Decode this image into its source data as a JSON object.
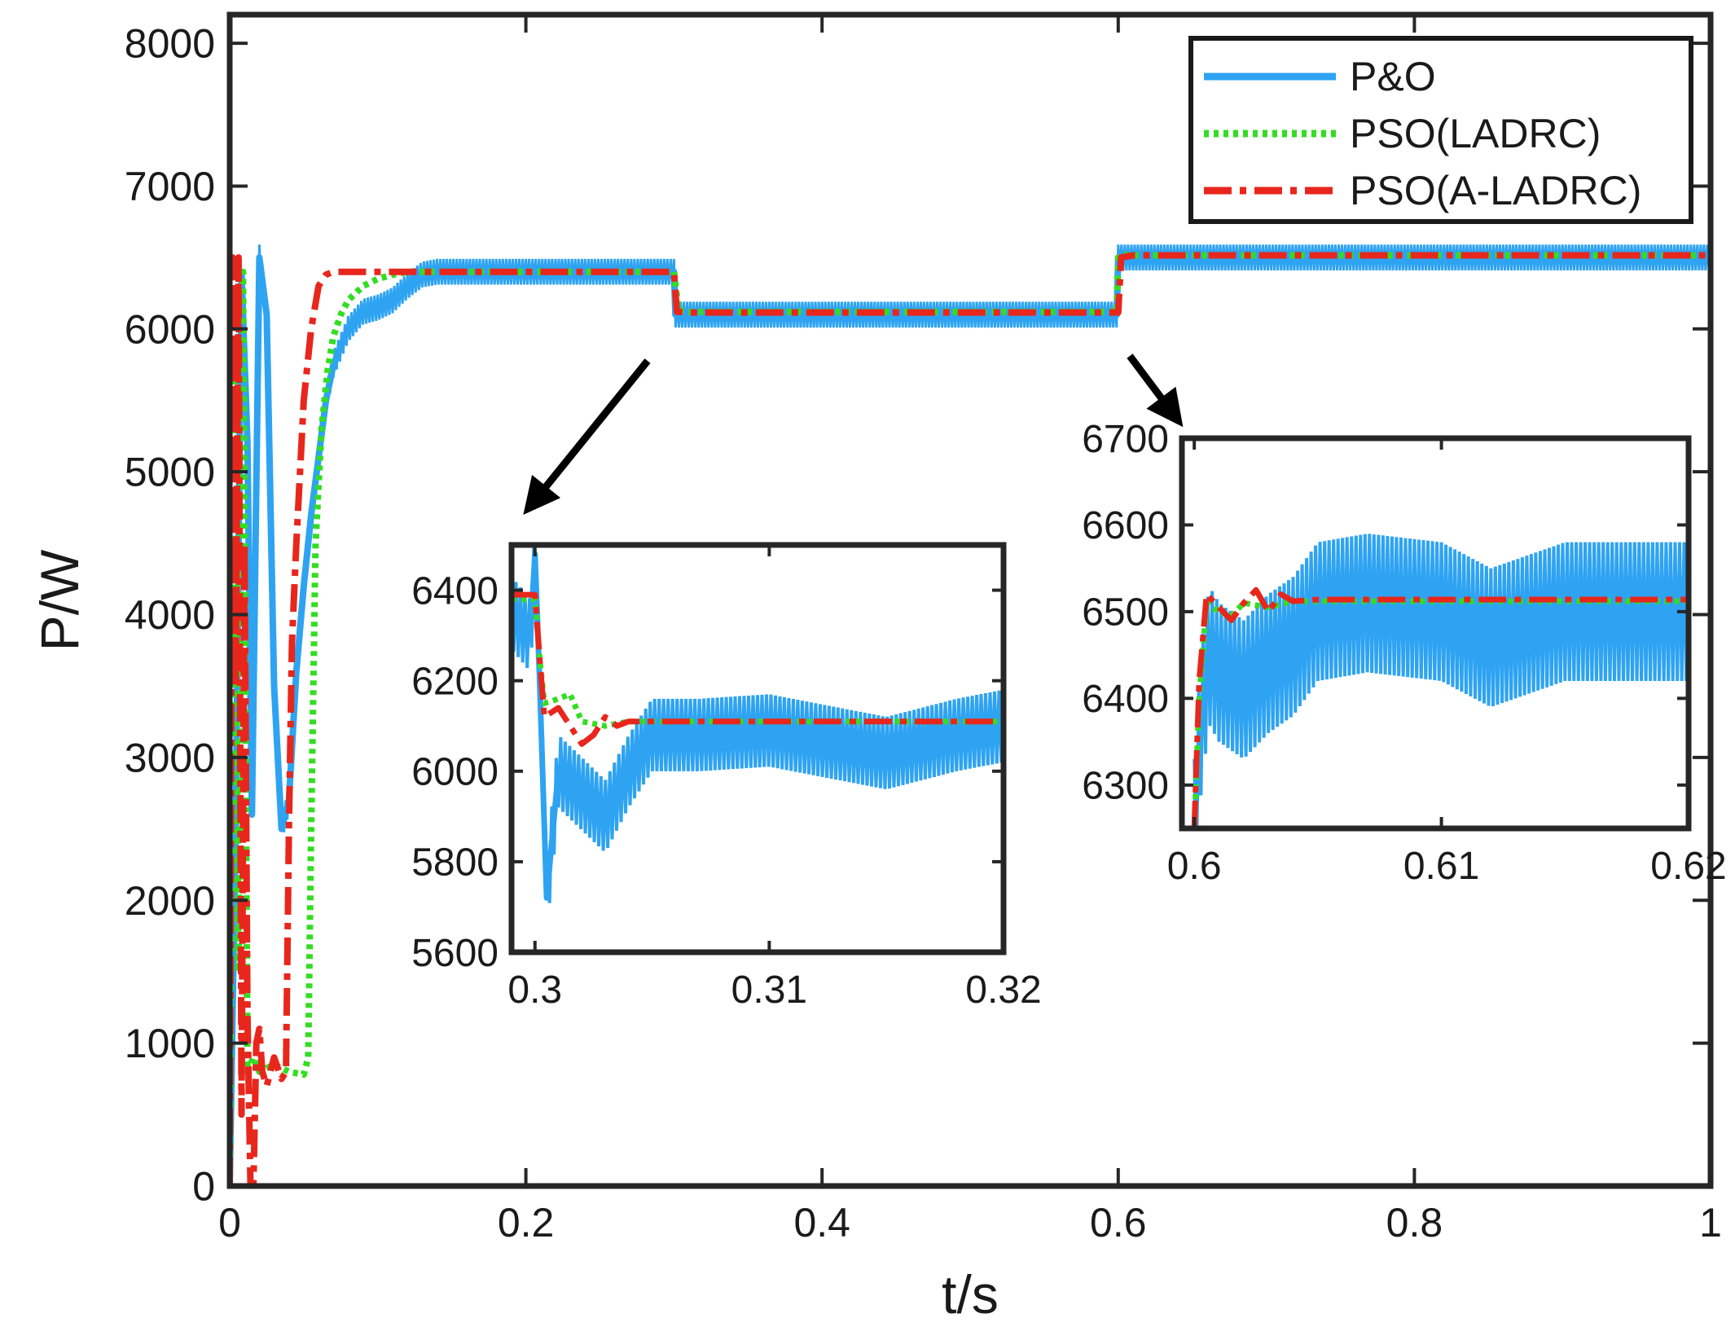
{
  "chart_data": {
    "type": "line",
    "main": {
      "xlabel": "t/s",
      "ylabel": "P/W",
      "xlim": [
        0,
        1
      ],
      "ylim": [
        0,
        8200
      ],
      "xticks": [
        0,
        0.2,
        0.4,
        0.6,
        0.8,
        1
      ],
      "xtick_labels": [
        "0",
        "0.2",
        "0.4",
        "0.6",
        "0.8",
        "1"
      ],
      "yticks": [
        0,
        1000,
        2000,
        3000,
        4000,
        5000,
        6000,
        7000,
        8000
      ],
      "ytick_labels": [
        "0",
        "1000",
        "2000",
        "3000",
        "4000",
        "5000",
        "6000",
        "7000",
        "8000"
      ],
      "series": [
        {
          "name": "P&O",
          "color": "#2ea3f2",
          "style": "solid",
          "x": [
            0,
            0.004,
            0.008,
            0.012,
            0.015,
            0.02,
            0.025,
            0.03,
            0.035,
            0.04,
            0.045,
            0.05,
            0.055,
            0.06,
            0.065,
            0.07,
            0.08,
            0.09,
            0.1,
            0.11,
            0.12,
            0.13,
            0.14,
            0.2,
            0.299,
            0.3,
            0.301,
            0.31,
            0.4,
            0.599,
            0.6,
            0.61,
            0.8,
            1.0
          ],
          "y": [
            0,
            2500,
            6400,
            5200,
            2600,
            6500,
            6100,
            3500,
            2500,
            2700,
            3600,
            4200,
            4700,
            5100,
            5500,
            5750,
            6000,
            6120,
            6150,
            6200,
            6300,
            6380,
            6400,
            6400,
            6400,
            6400,
            6100,
            6100,
            6100,
            6100,
            6500,
            6500,
            6500,
            6500
          ],
          "band_amplitude": 90
        },
        {
          "name": "PSO(LADRC)",
          "color": "#33dd22",
          "style": "dotted",
          "x": [
            0,
            0.003,
            0.006,
            0.009,
            0.012,
            0.016,
            0.02,
            0.03,
            0.04,
            0.05,
            0.053,
            0.055,
            0.058,
            0.062,
            0.066,
            0.07,
            0.075,
            0.08,
            0.09,
            0.1,
            0.11,
            0.12,
            0.14,
            0.299,
            0.3,
            0.303,
            0.31,
            0.599,
            0.6,
            0.603,
            0.61,
            1.0
          ],
          "y": [
            0,
            5800,
            1500,
            6400,
            800,
            900,
            800,
            850,
            800,
            780,
            900,
            2500,
            4500,
            5300,
            5700,
            5950,
            6100,
            6200,
            6300,
            6350,
            6380,
            6400,
            6400,
            6400,
            6400,
            6130,
            6120,
            6120,
            6500,
            6520,
            6515,
            6515
          ]
        },
        {
          "name": "PSO(A-LADRC)",
          "color": "#e8261c",
          "style": "dashdot",
          "x": [
            0,
            0.002,
            0.004,
            0.006,
            0.008,
            0.01,
            0.012,
            0.014,
            0.016,
            0.018,
            0.02,
            0.022,
            0.025,
            0.03,
            0.035,
            0.038,
            0.04,
            0.042,
            0.045,
            0.05,
            0.055,
            0.06,
            0.065,
            0.07,
            0.08,
            0.1,
            0.3,
            0.302,
            0.31,
            0.6,
            0.602,
            0.61,
            1.0
          ],
          "y": [
            0,
            6500,
            3500,
            6500,
            500,
            4500,
            1200,
            0,
            0,
            1000,
            1100,
            800,
            700,
            900,
            750,
            800,
            2500,
            3800,
            4500,
            5500,
            6000,
            6300,
            6380,
            6400,
            6400,
            6400,
            6400,
            6120,
            6115,
            6115,
            6500,
            6515,
            6515
          ]
        }
      ],
      "legend": {
        "position": "top-right",
        "entries": [
          "P&O",
          "PSO(LADRC)",
          "PSO(A-LADRC)"
        ]
      },
      "annotations": [
        "arrow from step at t=0.3 to inset 1",
        "arrow from step at t=0.6 to inset 2"
      ]
    },
    "inset1": {
      "xlim": [
        0.299,
        0.32
      ],
      "ylim": [
        5600,
        6500
      ],
      "xticks": [
        0.3,
        0.31,
        0.32
      ],
      "xtick_labels": [
        "0.3",
        "0.31",
        "0.32"
      ],
      "yticks": [
        5600,
        5800,
        6000,
        6200,
        6400
      ],
      "ytick_labels": [
        "5600",
        "5800",
        "6000",
        "6200",
        "6400"
      ],
      "series": [
        {
          "name": "P&O",
          "x": [
            0.299,
            0.2998,
            0.3,
            0.3002,
            0.3005,
            0.301,
            0.302,
            0.303,
            0.304,
            0.305,
            0.307,
            0.31,
            0.313,
            0.315,
            0.318,
            0.32
          ],
          "y": [
            6350,
            6300,
            6480,
            6200,
            5720,
            6000,
            5950,
            5900,
            6000,
            6080,
            6080,
            6090,
            6060,
            6040,
            6080,
            6100
          ],
          "band_amplitude": 80
        },
        {
          "name": "PSO(LADRC)",
          "x": [
            0.299,
            0.2998,
            0.3,
            0.3002,
            0.3004,
            0.301,
            0.3015,
            0.302,
            0.303,
            0.304,
            0.305,
            0.32
          ],
          "y": [
            6380,
            6380,
            6380,
            6250,
            6150,
            6160,
            6170,
            6110,
            6100,
            6110,
            6110,
            6110
          ]
        },
        {
          "name": "PSO(A-LADRC)",
          "x": [
            0.299,
            0.2998,
            0.3,
            0.3002,
            0.3004,
            0.301,
            0.3015,
            0.302,
            0.3025,
            0.303,
            0.3035,
            0.304,
            0.305,
            0.32
          ],
          "y": [
            6390,
            6390,
            6390,
            6250,
            6120,
            6140,
            6100,
            6060,
            6080,
            6120,
            6100,
            6110,
            6110,
            6110
          ]
        }
      ]
    },
    "inset2": {
      "xlim": [
        0.5995,
        0.62
      ],
      "ylim": [
        6250,
        6700
      ],
      "xticks": [
        0.6,
        0.61,
        0.62
      ],
      "xtick_labels": [
        "0.6",
        "0.61",
        "0.62"
      ],
      "yticks": [
        6300,
        6400,
        6500,
        6600,
        6700
      ],
      "ytick_labels": [
        "6300",
        "6400",
        "6500",
        "6600",
        "6700"
      ],
      "series": [
        {
          "name": "P&O",
          "x": [
            0.6,
            0.6003,
            0.6006,
            0.601,
            0.6015,
            0.602,
            0.603,
            0.604,
            0.605,
            0.607,
            0.61,
            0.612,
            0.615,
            0.618,
            0.62
          ],
          "y": [
            6250,
            6380,
            6450,
            6430,
            6420,
            6410,
            6440,
            6460,
            6500,
            6510,
            6500,
            6470,
            6500,
            6500,
            6500
          ],
          "band_amplitude": 80
        },
        {
          "name": "PSO(LADRC)",
          "x": [
            0.6,
            0.6002,
            0.6005,
            0.601,
            0.6015,
            0.602,
            0.603,
            0.604,
            0.62
          ],
          "y": [
            6250,
            6400,
            6510,
            6500,
            6495,
            6510,
            6505,
            6512,
            6512
          ]
        },
        {
          "name": "PSO(A-LADRC)",
          "x": [
            0.6,
            0.6002,
            0.6005,
            0.601,
            0.6015,
            0.602,
            0.6025,
            0.603,
            0.6035,
            0.604,
            0.605,
            0.62
          ],
          "y": [
            6250,
            6420,
            6520,
            6505,
            6490,
            6510,
            6525,
            6500,
            6520,
            6512,
            6514,
            6514
          ]
        }
      ]
    }
  }
}
